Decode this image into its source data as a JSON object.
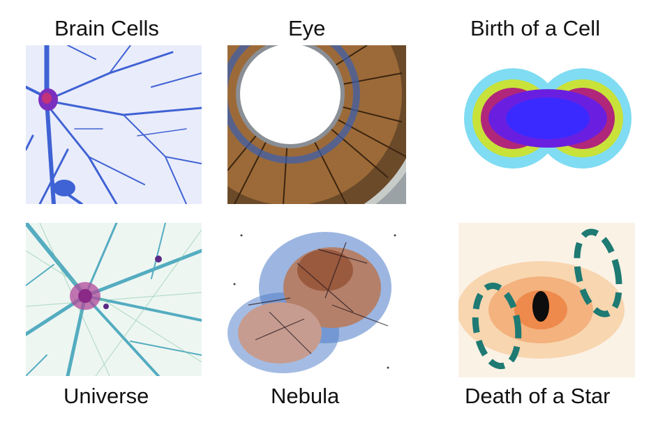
{
  "labels": {
    "brain_cells": "Brain Cells",
    "eye": "Eye",
    "birth_of_a_cell": "Birth of a Cell",
    "universe": "Universe",
    "nebula": "Nebula",
    "death_of_a_star": "Death of a Star"
  },
  "colors": {
    "neuron": "#3a5fd0",
    "iris_brown": "#8a5a2a",
    "cell_magenta": "#7a1fd6",
    "cosmic_web": "#3aa0b8",
    "nebula_brown": "#a86a5a",
    "star_teal": "#1e7a72"
  }
}
